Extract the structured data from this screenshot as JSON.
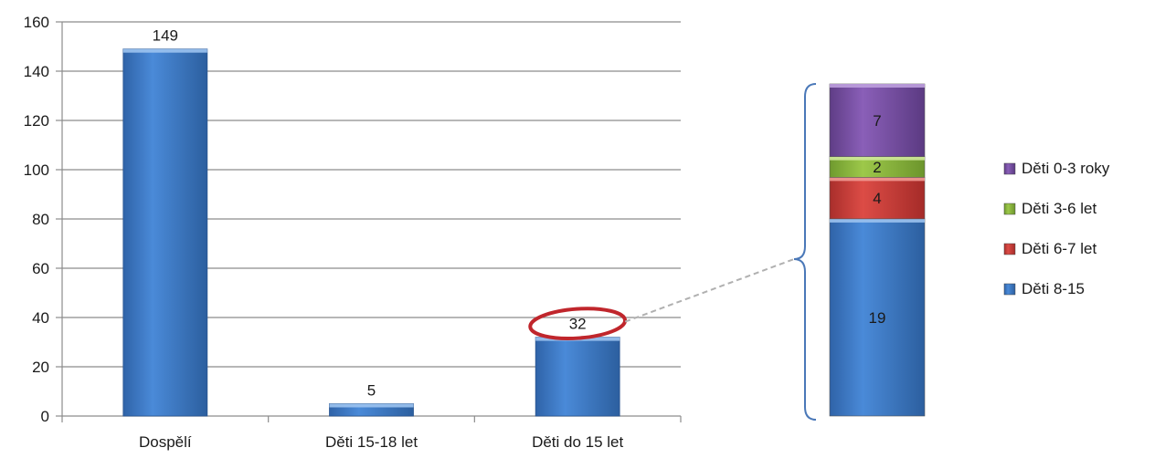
{
  "chart_data": [
    {
      "type": "bar",
      "categories": [
        "Dospělí",
        "Děti 15-18 let",
        "Děti do 15 let"
      ],
      "values": [
        149,
        5,
        32
      ],
      "ylim": [
        0,
        160
      ],
      "yticks": [
        0,
        20,
        40,
        60,
        80,
        100,
        120,
        140,
        160
      ],
      "ytick_labels": [
        "0",
        "20",
        "40",
        "60",
        "80",
        "100",
        "120",
        "140",
        "160"
      ],
      "data_labels": [
        "149",
        "5",
        "32"
      ],
      "highlight": {
        "category": "Děti do 15 let",
        "style": "red ellipse around data label",
        "color": "#c0262c"
      },
      "grid": true,
      "bar_color": "#3f7fd0"
    },
    {
      "type": "bar",
      "stacked": true,
      "categories": [
        ""
      ],
      "total": 32,
      "series": [
        {
          "name": "Děti 8-15",
          "value": 19,
          "label": "19",
          "color": "#3f7fd0"
        },
        {
          "name": "Děti 6-7 let",
          "value": 4,
          "label": "4",
          "color": "#d03a35"
        },
        {
          "name": "Děti 3-6 let",
          "value": 2,
          "label": "2",
          "color": "#8fbb3e"
        },
        {
          "name": "Děti 0-3 roky",
          "value": 7,
          "label": "7",
          "color": "#7a50a8"
        }
      ],
      "legend_position": "right",
      "legend_order": [
        "Děti 0-3 roky",
        "Děti 3-6 let",
        "Děti 6-7 let",
        "Děti 8-15"
      ]
    }
  ]
}
